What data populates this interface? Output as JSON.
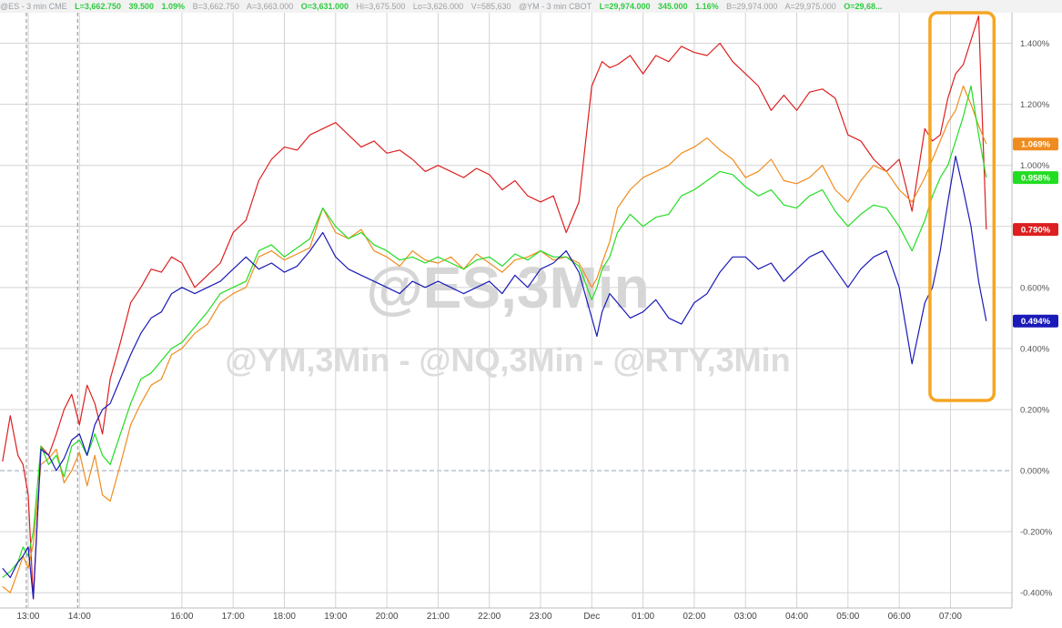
{
  "quote_bar": {
    "es": {
      "symbol": "@ES - 3 min  CME",
      "last": "L=3,662.750",
      "change": "39.500",
      "pct": "1.09%",
      "bid": "B=3,662.750",
      "ask": "A=3,663.000",
      "open": "O=3,631.000",
      "high": "Hi=3,675.500",
      "low": "Lo=3,626.000",
      "volume": "V=585,630"
    },
    "ym": {
      "symbol": "@YM - 3 min  CBOT",
      "last": "L=29,974.000",
      "change": "345.000",
      "pct": "1.16%",
      "bid": "B=29,974.000",
      "ask": "A=29,975.000",
      "open": "O=29,68..."
    }
  },
  "watermark": {
    "main": "@ES,3Min",
    "sub": "@YM,3Min - @NQ,3Min - @RTY,3Min"
  },
  "colors": {
    "red": "#dd1f1f",
    "orange": "#f08c1e",
    "green": "#22dd22",
    "blue": "#1a1ab8",
    "highlight_box": "#f5a623"
  },
  "chart_data": {
    "type": "line",
    "title": "",
    "xlabel": "",
    "ylabel": "",
    "y_unit": "%",
    "ylim": [
      -0.45,
      1.5
    ],
    "y_ticks": [
      "1.400%",
      "1.200%",
      "1.000%",
      "0.800%",
      "0.600%",
      "0.400%",
      "0.200%",
      "0.000%",
      "-0.200%",
      "-0.400%"
    ],
    "y_tick_values": [
      1.4,
      1.2,
      1.0,
      0.8,
      0.6,
      0.4,
      0.2,
      0.0,
      -0.2,
      -0.4
    ],
    "x_ticks": [
      "13:00",
      "14:00",
      "16:00",
      "17:00",
      "18:00",
      "19:00",
      "20:00",
      "21:00",
      "22:00",
      "23:00",
      "Dec",
      "01:00",
      "02:00",
      "03:00",
      "04:00",
      "05:00",
      "06:00",
      "07:00"
    ],
    "x_tick_hours": [
      0,
      1,
      3,
      4,
      5,
      6,
      7,
      8,
      9,
      10,
      11,
      12,
      13,
      14,
      15,
      16,
      17,
      18
    ],
    "x_range_hours": [
      -0.55,
      19.2
    ],
    "grid": true,
    "legend": "end-of-line value labels on right axis",
    "highlight": {
      "x_hours": [
        17.6,
        18.85
      ],
      "y": [
        0.23,
        1.5
      ]
    },
    "series": [
      {
        "color_key": "red",
        "end_label": "0.790%",
        "x": [
          -0.5,
          -0.35,
          -0.2,
          -0.1,
          0.0,
          0.1,
          0.25,
          0.4,
          0.55,
          0.7,
          0.85,
          1.0,
          1.15,
          1.3,
          1.45,
          1.6,
          1.8,
          2.0,
          2.2,
          2.4,
          2.6,
          2.8,
          3.0,
          3.25,
          3.5,
          3.75,
          4.0,
          4.25,
          4.5,
          4.75,
          5.0,
          5.25,
          5.5,
          5.75,
          6.0,
          6.25,
          6.5,
          6.75,
          7.0,
          7.25,
          7.5,
          7.75,
          8.0,
          8.25,
          8.5,
          8.75,
          9.0,
          9.25,
          9.5,
          9.75,
          10.0,
          10.25,
          10.5,
          10.75,
          11.0,
          11.1,
          11.2,
          11.35,
          11.5,
          11.75,
          12.0,
          12.25,
          12.5,
          12.75,
          13.0,
          13.25,
          13.5,
          13.75,
          14.0,
          14.25,
          14.5,
          14.75,
          15.0,
          15.25,
          15.5,
          15.75,
          16.0,
          16.25,
          16.5,
          16.75,
          17.0,
          17.25,
          17.5,
          17.65,
          17.8,
          17.95,
          18.1,
          18.25,
          18.4,
          18.55,
          18.7
        ],
        "values": [
          0.03,
          0.18,
          0.05,
          0.02,
          -0.08,
          -0.42,
          0.08,
          0.05,
          0.12,
          0.2,
          0.25,
          0.15,
          0.28,
          0.22,
          0.12,
          0.3,
          0.42,
          0.55,
          0.6,
          0.66,
          0.65,
          0.7,
          0.68,
          0.6,
          0.64,
          0.68,
          0.78,
          0.82,
          0.95,
          1.02,
          1.06,
          1.05,
          1.1,
          1.12,
          1.14,
          1.1,
          1.06,
          1.08,
          1.04,
          1.05,
          1.02,
          0.98,
          1.0,
          0.98,
          0.96,
          0.99,
          0.97,
          0.92,
          0.95,
          0.9,
          0.88,
          0.9,
          0.78,
          0.88,
          1.26,
          1.3,
          1.34,
          1.32,
          1.33,
          1.36,
          1.3,
          1.36,
          1.34,
          1.39,
          1.37,
          1.36,
          1.4,
          1.34,
          1.3,
          1.26,
          1.18,
          1.23,
          1.18,
          1.24,
          1.25,
          1.22,
          1.1,
          1.08,
          1.02,
          0.98,
          1.02,
          0.85,
          1.12,
          1.08,
          1.1,
          1.22,
          1.3,
          1.33,
          1.41,
          1.49,
          0.79
        ]
      },
      {
        "color_key": "orange",
        "end_label": "1.069%",
        "x": [
          -0.5,
          -0.35,
          -0.2,
          -0.1,
          0.0,
          0.1,
          0.25,
          0.4,
          0.55,
          0.7,
          0.85,
          1.0,
          1.15,
          1.3,
          1.45,
          1.6,
          1.8,
          2.0,
          2.2,
          2.4,
          2.6,
          2.8,
          3.0,
          3.25,
          3.5,
          3.75,
          4.0,
          4.25,
          4.5,
          4.75,
          5.0,
          5.25,
          5.5,
          5.75,
          6.0,
          6.25,
          6.5,
          6.75,
          7.0,
          7.25,
          7.5,
          7.75,
          8.0,
          8.25,
          8.5,
          8.75,
          9.0,
          9.25,
          9.5,
          9.75,
          10.0,
          10.25,
          10.5,
          10.75,
          11.0,
          11.1,
          11.2,
          11.35,
          11.5,
          11.75,
          12.0,
          12.25,
          12.5,
          12.75,
          13.0,
          13.25,
          13.5,
          13.75,
          14.0,
          14.25,
          14.5,
          14.75,
          15.0,
          15.25,
          15.5,
          15.75,
          16.0,
          16.25,
          16.5,
          16.75,
          17.0,
          17.25,
          17.5,
          17.65,
          17.8,
          17.95,
          18.1,
          18.25,
          18.4,
          18.55,
          18.7
        ],
        "values": [
          -0.38,
          -0.4,
          -0.33,
          -0.28,
          -0.32,
          -0.24,
          0.02,
          0.04,
          0.07,
          -0.04,
          0.0,
          0.06,
          -0.05,
          0.05,
          -0.08,
          -0.1,
          0.02,
          0.15,
          0.22,
          0.28,
          0.3,
          0.38,
          0.4,
          0.45,
          0.48,
          0.55,
          0.58,
          0.6,
          0.7,
          0.72,
          0.69,
          0.71,
          0.73,
          0.86,
          0.78,
          0.76,
          0.79,
          0.72,
          0.7,
          0.67,
          0.72,
          0.69,
          0.68,
          0.7,
          0.66,
          0.71,
          0.68,
          0.65,
          0.69,
          0.7,
          0.72,
          0.69,
          0.7,
          0.68,
          0.6,
          0.63,
          0.68,
          0.75,
          0.86,
          0.92,
          0.96,
          0.98,
          1.0,
          1.04,
          1.06,
          1.09,
          1.05,
          1.02,
          0.96,
          0.98,
          1.02,
          0.95,
          0.94,
          0.96,
          1.0,
          0.92,
          0.88,
          0.95,
          1.0,
          0.98,
          0.92,
          0.88,
          0.96,
          1.02,
          1.08,
          1.14,
          1.18,
          1.26,
          1.2,
          1.13,
          1.07
        ]
      },
      {
        "color_key": "green",
        "end_label": "0.958%",
        "x": [
          -0.5,
          -0.35,
          -0.2,
          -0.1,
          0.0,
          0.1,
          0.25,
          0.4,
          0.55,
          0.7,
          0.85,
          1.0,
          1.15,
          1.3,
          1.45,
          1.6,
          1.8,
          2.0,
          2.2,
          2.4,
          2.6,
          2.8,
          3.0,
          3.25,
          3.5,
          3.75,
          4.0,
          4.25,
          4.5,
          4.75,
          5.0,
          5.25,
          5.5,
          5.75,
          6.0,
          6.25,
          6.5,
          6.75,
          7.0,
          7.25,
          7.5,
          7.75,
          8.0,
          8.25,
          8.5,
          8.75,
          9.0,
          9.25,
          9.5,
          9.75,
          10.0,
          10.25,
          10.5,
          10.75,
          11.0,
          11.1,
          11.2,
          11.35,
          11.5,
          11.75,
          12.0,
          12.25,
          12.5,
          12.75,
          13.0,
          13.25,
          13.5,
          13.75,
          14.0,
          14.25,
          14.5,
          14.75,
          15.0,
          15.25,
          15.5,
          15.75,
          16.0,
          16.25,
          16.5,
          16.75,
          17.0,
          17.25,
          17.5,
          17.65,
          17.8,
          17.95,
          18.1,
          18.25,
          18.4,
          18.55,
          18.7
        ],
        "values": [
          -0.35,
          -0.33,
          -0.3,
          -0.25,
          -0.28,
          -0.2,
          0.08,
          0.02,
          0.05,
          -0.02,
          0.08,
          0.1,
          0.05,
          0.12,
          0.05,
          0.02,
          0.12,
          0.22,
          0.3,
          0.32,
          0.36,
          0.4,
          0.42,
          0.47,
          0.52,
          0.58,
          0.6,
          0.62,
          0.72,
          0.74,
          0.7,
          0.73,
          0.76,
          0.86,
          0.8,
          0.76,
          0.78,
          0.74,
          0.72,
          0.69,
          0.7,
          0.68,
          0.7,
          0.68,
          0.66,
          0.69,
          0.7,
          0.67,
          0.71,
          0.69,
          0.72,
          0.7,
          0.7,
          0.67,
          0.56,
          0.6,
          0.66,
          0.7,
          0.78,
          0.84,
          0.8,
          0.83,
          0.84,
          0.9,
          0.92,
          0.95,
          0.98,
          0.97,
          0.93,
          0.9,
          0.92,
          0.87,
          0.86,
          0.9,
          0.92,
          0.85,
          0.8,
          0.84,
          0.87,
          0.86,
          0.8,
          0.72,
          0.82,
          0.9,
          0.96,
          1.0,
          1.08,
          1.16,
          1.26,
          1.1,
          0.96
        ]
      },
      {
        "color_key": "blue",
        "end_label": "0.494%",
        "x": [
          -0.5,
          -0.35,
          -0.2,
          -0.1,
          0.0,
          0.1,
          0.25,
          0.4,
          0.55,
          0.7,
          0.85,
          1.0,
          1.15,
          1.3,
          1.45,
          1.6,
          1.8,
          2.0,
          2.2,
          2.4,
          2.6,
          2.8,
          3.0,
          3.25,
          3.5,
          3.75,
          4.0,
          4.25,
          4.5,
          4.75,
          5.0,
          5.25,
          5.5,
          5.75,
          6.0,
          6.25,
          6.5,
          6.75,
          7.0,
          7.25,
          7.5,
          7.75,
          8.0,
          8.25,
          8.5,
          8.75,
          9.0,
          9.25,
          9.5,
          9.75,
          10.0,
          10.25,
          10.5,
          10.75,
          11.0,
          11.1,
          11.2,
          11.35,
          11.5,
          11.75,
          12.0,
          12.25,
          12.5,
          12.75,
          13.0,
          13.25,
          13.5,
          13.75,
          14.0,
          14.25,
          14.5,
          14.75,
          15.0,
          15.25,
          15.5,
          15.75,
          16.0,
          16.25,
          16.5,
          16.75,
          17.0,
          17.25,
          17.5,
          17.65,
          17.8,
          17.95,
          18.1,
          18.25,
          18.4,
          18.55,
          18.7
        ],
        "values": [
          -0.32,
          -0.35,
          -0.3,
          -0.28,
          -0.25,
          -0.42,
          0.07,
          0.05,
          0.0,
          0.04,
          0.1,
          0.12,
          0.05,
          0.15,
          0.2,
          0.22,
          0.3,
          0.38,
          0.45,
          0.5,
          0.52,
          0.58,
          0.6,
          0.58,
          0.6,
          0.62,
          0.66,
          0.7,
          0.66,
          0.68,
          0.65,
          0.67,
          0.72,
          0.78,
          0.7,
          0.66,
          0.64,
          0.62,
          0.6,
          0.58,
          0.62,
          0.6,
          0.62,
          0.6,
          0.58,
          0.6,
          0.62,
          0.58,
          0.64,
          0.6,
          0.66,
          0.68,
          0.72,
          0.65,
          0.5,
          0.44,
          0.52,
          0.58,
          0.55,
          0.5,
          0.52,
          0.56,
          0.5,
          0.48,
          0.55,
          0.58,
          0.65,
          0.7,
          0.7,
          0.66,
          0.68,
          0.62,
          0.66,
          0.7,
          0.72,
          0.66,
          0.6,
          0.66,
          0.7,
          0.72,
          0.6,
          0.35,
          0.55,
          0.6,
          0.72,
          0.88,
          1.03,
          0.92,
          0.8,
          0.62,
          0.49
        ]
      }
    ]
  }
}
